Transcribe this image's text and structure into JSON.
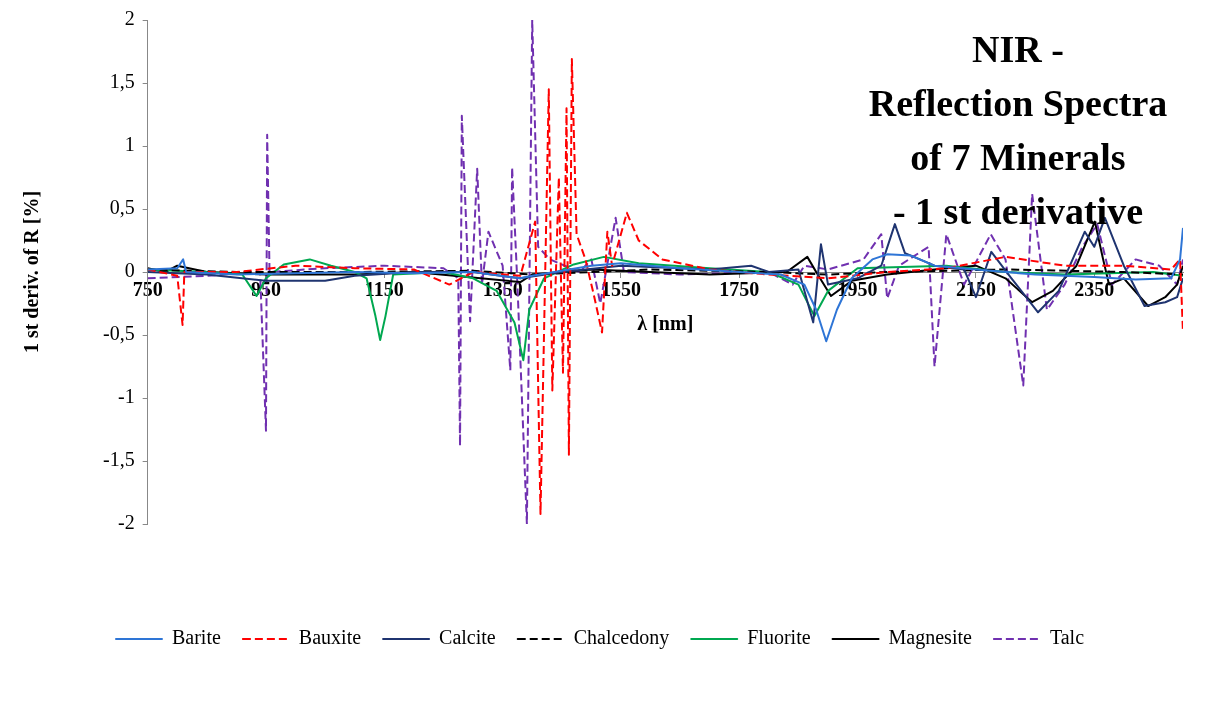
{
  "chart_data": {
    "type": "line",
    "title": "NIR -\nReflection Spectra\nof 7 Minerals\n- 1 st derivative",
    "xlabel": "λ [nm]",
    "ylabel": "1 st deriv. of R [%]",
    "xlim": [
      750,
      2500
    ],
    "xticks": [
      750,
      950,
      1150,
      1350,
      1550,
      1750,
      1950,
      2150,
      2350
    ],
    "ylim": [
      -2,
      2
    ],
    "yticks": [
      {
        "value": -2,
        "label": "-2"
      },
      {
        "value": -1.5,
        "label": "-1,5"
      },
      {
        "value": -1,
        "label": "-1"
      },
      {
        "value": -0.5,
        "label": "-0,5"
      },
      {
        "value": 0,
        "label": "0"
      },
      {
        "value": 0.5,
        "label": "0,5"
      },
      {
        "value": 1,
        "label": "1"
      },
      {
        "value": 1.5,
        "label": "1,5"
      },
      {
        "value": 2,
        "label": "2"
      }
    ],
    "grid": false,
    "legend": "bottom",
    "marker": "none",
    "series": [
      {
        "name": "Barite",
        "color": "#2e75d6",
        "line_style": "solid",
        "x": [
          750,
          800,
          810,
          815,
          900,
          1000,
          1100,
          1200,
          1300,
          1380,
          1400,
          1500,
          1550,
          1650,
          1750,
          1820,
          1860,
          1880,
          1897,
          1915,
          1940,
          1975,
          2000,
          2040,
          2080,
          2150,
          2250,
          2350,
          2420,
          2480,
          2495,
          2500
        ],
        "values": [
          0.02,
          0.03,
          0.1,
          0,
          -0.02,
          -0.01,
          0,
          -0.01,
          0,
          -0.05,
          -0.03,
          0.05,
          0.07,
          0.03,
          0,
          -0.02,
          -0.1,
          -0.3,
          -0.55,
          -0.3,
          -0.05,
          0.1,
          0.14,
          0.13,
          0.05,
          0.02,
          -0.02,
          -0.04,
          -0.06,
          -0.05,
          0.1,
          0.35
        ]
      },
      {
        "name": "Bauxite",
        "color": "#ff0000",
        "line_style": "dashed",
        "x": [
          750,
          800,
          809,
          812,
          900,
          1000,
          1100,
          1200,
          1260,
          1300,
          1380,
          1405,
          1414,
          1428,
          1434,
          1445,
          1452,
          1458,
          1462,
          1467,
          1475,
          1490,
          1505,
          1518,
          1527,
          1535,
          1560,
          1580,
          1620,
          1700,
          1800,
          1900,
          2000,
          2100,
          2200,
          2300,
          2400,
          2480,
          2495,
          2500
        ],
        "values": [
          0.02,
          -0.03,
          -0.42,
          0,
          0,
          0.05,
          0.03,
          0.02,
          -0.1,
          0,
          -0.03,
          0.4,
          -1.92,
          1.45,
          -0.94,
          0.75,
          -0.8,
          1.3,
          -1.45,
          1.69,
          0.3,
          0.1,
          -0.2,
          -0.48,
          0.32,
          0.05,
          0.47,
          0.25,
          0.1,
          0.02,
          -0.02,
          -0.05,
          0,
          0.03,
          0.12,
          0.05,
          0.05,
          0.02,
          0.1,
          -0.48
        ]
      },
      {
        "name": "Calcite",
        "color": "#1f3470",
        "line_style": "solid",
        "x": [
          750,
          850,
          950,
          1050,
          1100,
          1200,
          1300,
          1380,
          1450,
          1550,
          1700,
          1770,
          1800,
          1850,
          1875,
          1888,
          1900,
          1950,
          1990,
          2013,
          2030,
          2080,
          2130,
          2150,
          2176,
          2210,
          2255,
          2290,
          2334,
          2350,
          2368,
          2400,
          2435,
          2470,
          2490,
          2500
        ],
        "values": [
          0,
          -0.02,
          -0.07,
          -0.07,
          -0.03,
          0,
          0,
          -0.05,
          0,
          0.05,
          0.02,
          0.05,
          0,
          0.02,
          -0.4,
          0.22,
          -0.1,
          -0.05,
          0.05,
          0.38,
          0.15,
          0.05,
          0.02,
          -0.2,
          0.16,
          -0.05,
          -0.32,
          -0.15,
          0.32,
          0.2,
          0.43,
          0.05,
          -0.27,
          -0.24,
          -0.2,
          -0.05
        ]
      },
      {
        "name": "Chalcedony",
        "color": "#000000",
        "line_style": "dashed",
        "x": [
          750,
          900,
          1100,
          1300,
          1400,
          1600,
          1800,
          1900,
          2000,
          2200,
          2400,
          2500
        ],
        "values": [
          0.02,
          0,
          0,
          0.01,
          -0.02,
          0.02,
          0,
          -0.02,
          0,
          0.02,
          0,
          -0.02
        ]
      },
      {
        "name": "Fluorite",
        "color": "#00a850",
        "line_style": "solid",
        "x": [
          750,
          850,
          910,
          934,
          950,
          980,
          1024,
          1060,
          1100,
          1120,
          1135,
          1143,
          1152,
          1165,
          1250,
          1300,
          1340,
          1370,
          1385,
          1395,
          1420,
          1470,
          1521,
          1580,
          1700,
          1800,
          1850,
          1877,
          1900,
          1950,
          2100,
          2200,
          2300,
          2450,
          2500
        ],
        "values": [
          0.02,
          0,
          -0.02,
          -0.19,
          -0.05,
          0.06,
          0.1,
          0.05,
          0,
          -0.05,
          -0.35,
          -0.54,
          -0.35,
          -0.02,
          0,
          -0.05,
          -0.15,
          -0.4,
          -0.7,
          -0.3,
          -0.05,
          0.06,
          0.12,
          0.07,
          0.03,
          0,
          -0.1,
          -0.35,
          -0.15,
          0.03,
          0.05,
          0,
          -0.02,
          0,
          -0.03
        ]
      },
      {
        "name": "Magnesite",
        "color": "#000000",
        "line_style": "solid",
        "x": [
          750,
          780,
          800,
          850,
          950,
          1100,
          1200,
          1380,
          1400,
          1500,
          1700,
          1830,
          1865,
          1880,
          1905,
          1940,
          2000,
          2100,
          2150,
          2200,
          2245,
          2280,
          2320,
          2351,
          2365,
          2375,
          2400,
          2441,
          2470,
          2490,
          2500
        ],
        "values": [
          0.03,
          0,
          0.05,
          0,
          -0.02,
          -0.02,
          0,
          -0.08,
          -0.02,
          0.02,
          -0.02,
          0,
          0.12,
          0,
          -0.19,
          -0.07,
          -0.02,
          0.03,
          0.05,
          -0.05,
          -0.24,
          -0.15,
          0.05,
          0.4,
          0.1,
          -0.1,
          -0.05,
          -0.27,
          -0.2,
          -0.1,
          0.05
        ]
      },
      {
        "name": "Talc",
        "color": "#7030b0",
        "line_style": "dashed",
        "x": [
          750,
          850,
          940,
          950,
          952,
          956,
          1050,
          1150,
          1250,
          1275,
          1278,
          1281,
          1295,
          1307,
          1315,
          1326,
          1350,
          1363,
          1366,
          1375,
          1391,
          1400,
          1410,
          1430,
          1480,
          1500,
          1515,
          1541,
          1555,
          1650,
          1800,
          1840,
          1860,
          1900,
          1960,
          1990,
          2000,
          2020,
          2070,
          2080,
          2100,
          2130,
          2175,
          2200,
          2230,
          2245,
          2270,
          2300,
          2330,
          2355,
          2380,
          2420,
          2460,
          2490,
          2500
        ],
        "values": [
          -0.05,
          -0.03,
          0,
          -1.26,
          1.09,
          0,
          0.03,
          0.05,
          0.03,
          -0.05,
          -1.38,
          1.24,
          -0.39,
          0.82,
          -0.1,
          0.32,
          0.05,
          -0.78,
          0.83,
          -0.1,
          -2,
          2,
          0.2,
          0.1,
          0,
          0.1,
          -0.25,
          0.43,
          0,
          -0.02,
          0,
          -0.1,
          0.05,
          0.02,
          0.1,
          0.3,
          -0.21,
          0.05,
          0.2,
          -0.75,
          0.3,
          -0.1,
          0.3,
          0.1,
          -0.9,
          0.62,
          -0.3,
          -0.1,
          0.2,
          0.38,
          -0.1,
          0.1,
          0.05,
          -0.1,
          0.1
        ]
      }
    ]
  }
}
